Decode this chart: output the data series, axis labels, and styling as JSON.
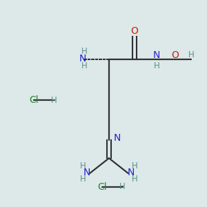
{
  "background_color": "#dde8e8",
  "figsize": [
    3.0,
    3.0
  ],
  "dpi": 100,
  "colors": {
    "blue": "#2222cc",
    "teal": "#5a9090",
    "red": "#cc2200",
    "green": "#228833",
    "bond": "#303030"
  },
  "layout": {
    "xlim": [
      0,
      300
    ],
    "ylim": [
      0,
      300
    ]
  }
}
